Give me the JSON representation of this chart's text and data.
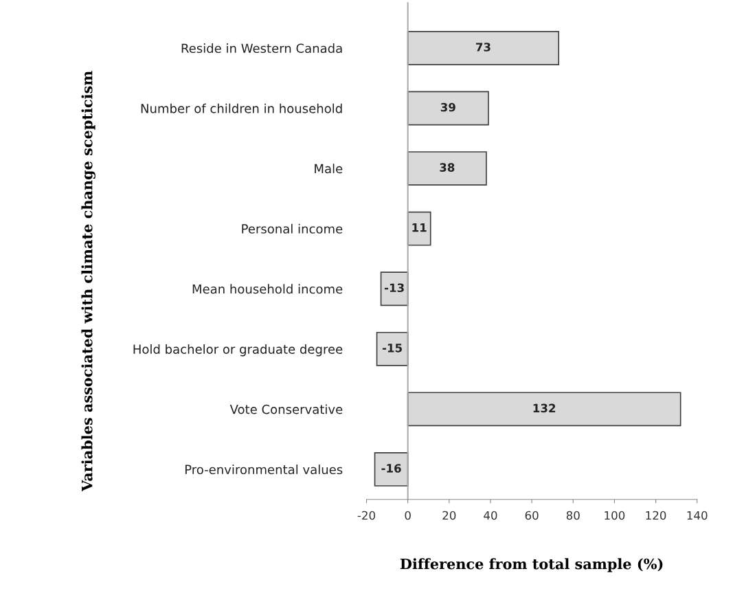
{
  "chart_data": {
    "type": "bar",
    "orientation": "horizontal",
    "xlabel": "Difference from total sample (%)",
    "ylabel": "Variables associated with climate change scepticism",
    "categories": [
      "Reside in Western Canada",
      "Number of children in household",
      "Male",
      "Personal income",
      "Mean household income",
      "Hold bachelor or graduate degree",
      "Vote Conservative",
      "Pro-environmental values"
    ],
    "values": [
      73,
      39,
      38,
      11,
      -13,
      -15,
      132,
      -16
    ],
    "color": "#d9d9d9",
    "data_labels": true,
    "xlim": [
      -20,
      140
    ],
    "xticks": [
      -20,
      0,
      20,
      40,
      60,
      80,
      100,
      120,
      140
    ]
  }
}
